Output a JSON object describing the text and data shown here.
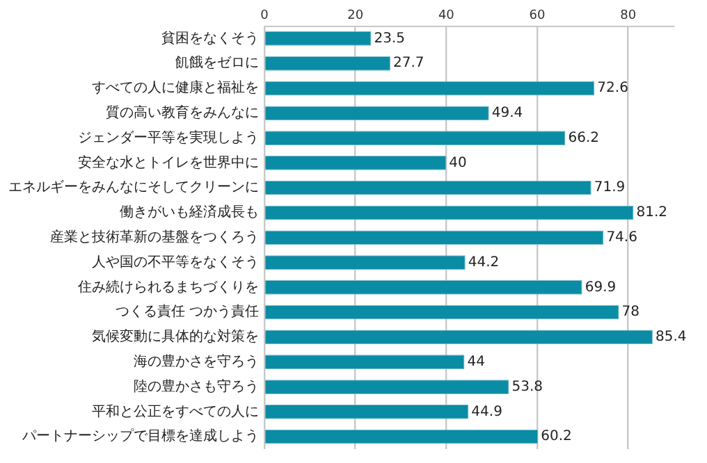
{
  "chart_data": {
    "type": "bar",
    "orientation": "horizontal",
    "categories": [
      "貧困をなくそう",
      "飢餓をゼロに",
      "すべての人に健康と福祉を",
      "質の高い教育をみんなに",
      "ジェンダー平等を実現しよう",
      "安全な水とトイレを世界中に",
      "エネルギーをみんなにそしてクリーンに",
      "働きがいも経済成長も",
      "産業と技術革新の基盤をつくろう",
      "人や国の不平等をなくそう",
      "住み続けられるまちづくりを",
      "つくる責任 つかう責任",
      "気候変動に具体的な対策を",
      "海の豊かさを守ろう",
      "陸の豊かさも守ろう",
      "平和と公正をすべての人に",
      "パートナーシップで目標を達成しよう"
    ],
    "values": [
      23.5,
      27.7,
      72.6,
      49.4,
      66.2,
      40,
      71.9,
      81.2,
      74.6,
      44.2,
      69.9,
      78,
      85.4,
      44,
      53.8,
      44.9,
      60.2
    ],
    "color": "#0a8ca5",
    "xlim": [
      0,
      90
    ],
    "xticks": [
      0,
      20,
      40,
      60,
      80
    ],
    "grid": "x",
    "data_labels": true,
    "legend": false
  }
}
